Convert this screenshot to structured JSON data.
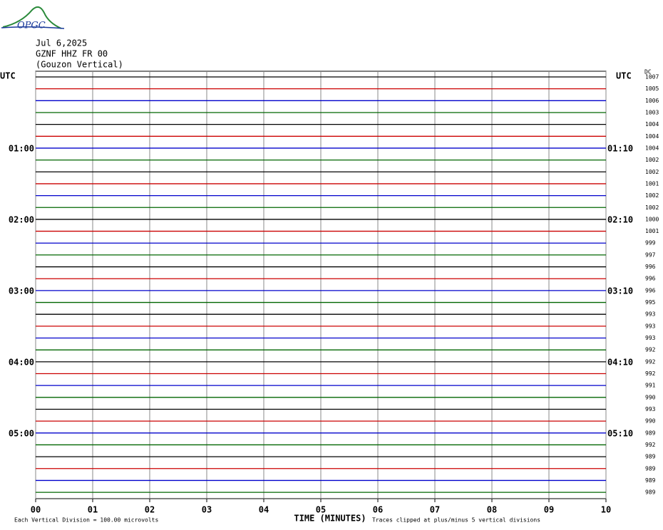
{
  "header": {
    "logo": "OPGC",
    "date": "Jul 6,2025",
    "station": "GZNF HHZ FR 00",
    "location": "(Gouzon Vertical)"
  },
  "chart_data": {
    "type": "helicorder",
    "left_title": "UTC",
    "right_title": "UTC",
    "dc_title": "DC",
    "colors": [
      "#000000",
      "#cc0000",
      "#0000cc",
      "#006600"
    ],
    "xlim": [
      0,
      10
    ],
    "xticks": [
      {
        "value": 0,
        "label": "00"
      },
      {
        "value": 1,
        "label": "01"
      },
      {
        "value": 2,
        "label": "02"
      },
      {
        "value": 3,
        "label": "03"
      },
      {
        "value": 4,
        "label": "04"
      },
      {
        "value": 5,
        "label": "05"
      },
      {
        "value": 6,
        "label": "06"
      },
      {
        "value": 7,
        "label": "07"
      },
      {
        "value": 8,
        "label": "08"
      },
      {
        "value": 9,
        "label": "09"
      },
      10
    ],
    "xlabel": "TIME (MINUTES)",
    "grid": true,
    "left_labels": [
      null,
      null,
      null,
      null,
      null,
      null,
      "01:00",
      null,
      null,
      null,
      null,
      null,
      "02:00",
      null,
      null,
      null,
      null,
      null,
      "03:00",
      null,
      null,
      null,
      null,
      null,
      "04:00",
      null,
      null,
      null,
      null,
      null,
      "05:00",
      null,
      null,
      null,
      null,
      null
    ],
    "right_labels": [
      null,
      null,
      null,
      null,
      null,
      null,
      "01:10",
      null,
      null,
      null,
      null,
      null,
      "02:10",
      null,
      null,
      null,
      null,
      null,
      "03:10",
      null,
      null,
      null,
      null,
      null,
      "04:10",
      null,
      null,
      null,
      null,
      null,
      "05:10",
      null,
      null,
      null,
      null,
      null
    ],
    "dc": [
      1007,
      1005,
      1006,
      1003,
      1004,
      1004,
      1004,
      1002,
      1002,
      1001,
      1002,
      1002,
      1000,
      1001,
      999,
      997,
      996,
      996,
      996,
      995,
      993,
      993,
      993,
      992,
      992,
      992,
      991,
      990,
      993,
      990,
      989,
      992,
      989,
      989,
      989,
      989
    ],
    "scale_note": "Each Vertical Division =  100.00 microvolts",
    "clip_note": "Traces clipped at plus/minus 5 vertical divisions"
  }
}
